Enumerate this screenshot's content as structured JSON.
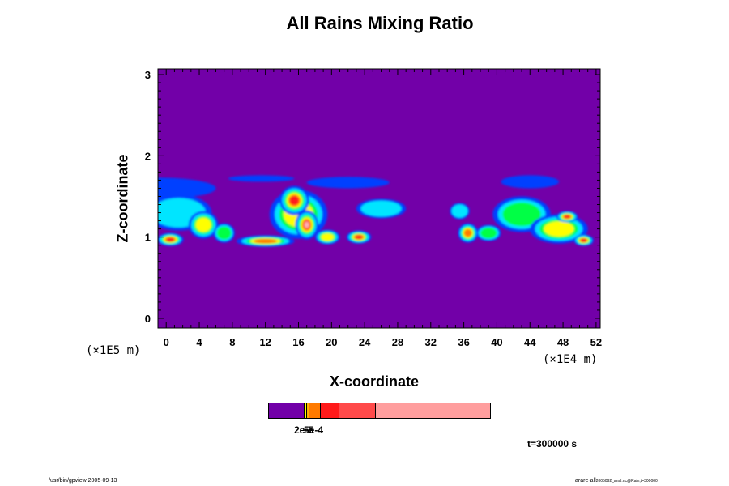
{
  "chart_data": {
    "type": "heatmap",
    "title": "All Rains Mixing Ratio",
    "xlabel": "X-coordinate",
    "ylabel": "Z-coordinate",
    "x_unit": "(×1E4 m)",
    "z_unit": "(×1E5 m)",
    "x_ticks": [
      0,
      4,
      8,
      12,
      16,
      20,
      24,
      28,
      32,
      36,
      40,
      44,
      48,
      52
    ],
    "y_ticks": [
      0,
      1,
      2,
      3
    ],
    "xlim": [
      -1,
      52.5
    ],
    "ylim": [
      -0.12,
      3.07
    ],
    "background_color": "#7200a8",
    "cells": [
      {
        "x": -1,
        "y": 1.6,
        "rx": 7,
        "ry": 0.13,
        "level": 1
      },
      {
        "x": 1.5,
        "y": 1.3,
        "rx": 4,
        "ry": 0.22,
        "level": 2
      },
      {
        "x": 0.5,
        "y": 0.97,
        "rx": 1.6,
        "ry": 0.08,
        "level": 6
      },
      {
        "x": 4.5,
        "y": 1.15,
        "rx": 1.8,
        "ry": 0.17,
        "level": 4
      },
      {
        "x": 7,
        "y": 1.05,
        "rx": 1.3,
        "ry": 0.12,
        "level": 3
      },
      {
        "x": 12,
        "y": 0.95,
        "rx": 3.5,
        "ry": 0.07,
        "level": 5
      },
      {
        "x": 11.5,
        "y": 1.72,
        "rx": 4,
        "ry": 0.04,
        "level": 1
      },
      {
        "x": 16,
        "y": 1.28,
        "rx": 3.5,
        "ry": 0.3,
        "level": 4
      },
      {
        "x": 15.5,
        "y": 1.45,
        "rx": 1.8,
        "ry": 0.18,
        "level": 6
      },
      {
        "x": 17,
        "y": 1.15,
        "rx": 1.4,
        "ry": 0.18,
        "level": 7
      },
      {
        "x": 22,
        "y": 1.67,
        "rx": 5,
        "ry": 0.07,
        "level": 1
      },
      {
        "x": 19.5,
        "y": 1.0,
        "rx": 1.5,
        "ry": 0.09,
        "level": 4
      },
      {
        "x": 23.3,
        "y": 1.0,
        "rx": 1.5,
        "ry": 0.08,
        "level": 6
      },
      {
        "x": 26,
        "y": 1.35,
        "rx": 3,
        "ry": 0.12,
        "level": 2
      },
      {
        "x": 35.5,
        "y": 1.32,
        "rx": 1.2,
        "ry": 0.1,
        "level": 2
      },
      {
        "x": 36.5,
        "y": 1.05,
        "rx": 1.2,
        "ry": 0.12,
        "level": 5
      },
      {
        "x": 39,
        "y": 1.05,
        "rx": 1.5,
        "ry": 0.1,
        "level": 3
      },
      {
        "x": 44,
        "y": 1.68,
        "rx": 3.5,
        "ry": 0.08,
        "level": 1
      },
      {
        "x": 43,
        "y": 1.28,
        "rx": 3.5,
        "ry": 0.22,
        "level": 3
      },
      {
        "x": 47.5,
        "y": 1.1,
        "rx": 3.5,
        "ry": 0.18,
        "level": 4
      },
      {
        "x": 48.5,
        "y": 1.25,
        "rx": 1.3,
        "ry": 0.07,
        "level": 6
      },
      {
        "x": 50.5,
        "y": 0.96,
        "rx": 1.2,
        "ry": 0.07,
        "level": 6
      }
    ],
    "level_colors": [
      "#7200a8",
      "#0040ff",
      "#00e5ff",
      "#00ff44",
      "#ffff00",
      "#ff7a00",
      "#ff1a1a",
      "#ffb0b0"
    ]
  },
  "colorbar": {
    "segments": [
      {
        "color": "#7200a8",
        "width": 0.163
      },
      {
        "color": "#ffff00",
        "width": 0.011
      },
      {
        "color": "#ffb000",
        "width": 0.011
      },
      {
        "color": "#ff7a00",
        "width": 0.051
      },
      {
        "color": "#ff1a1a",
        "width": 0.084
      },
      {
        "color": "#ff4a4a",
        "width": 0.165
      },
      {
        "color": "#ff9e9e",
        "width": 0.515
      }
    ],
    "label_a": "2e-5",
    "label_b": "5e-4"
  },
  "time_label": "t=300000 s",
  "footer_left": "/usr/bin/gpview 2005-09-13",
  "footer_right_main": "arare-all",
  "footer_right_small": "2005092_anal.nc@Rain,t=300000"
}
